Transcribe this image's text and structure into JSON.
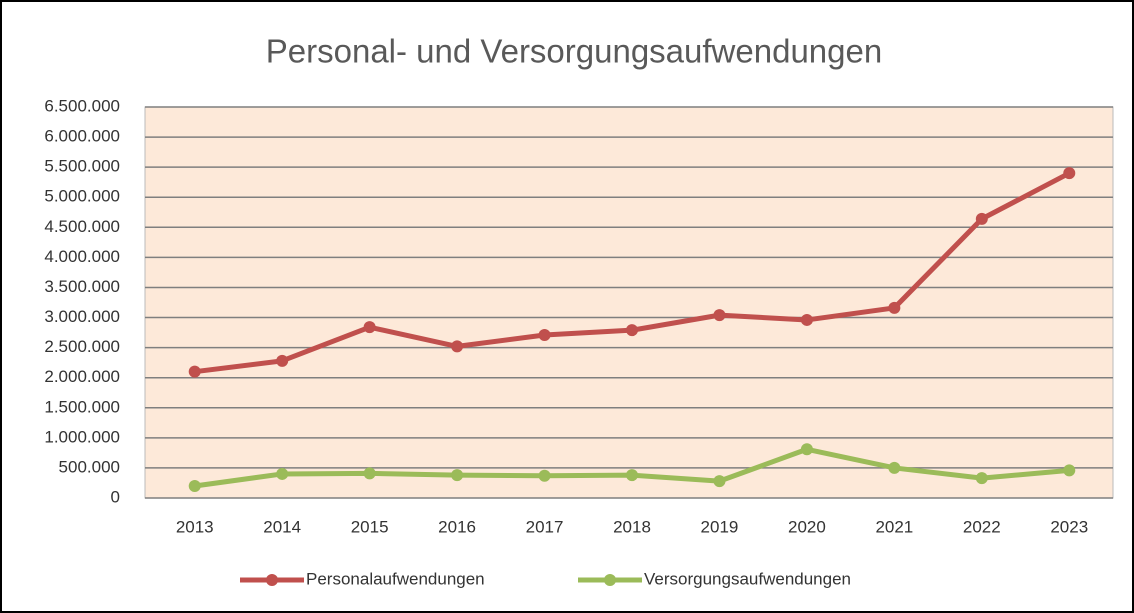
{
  "chart_data": {
    "type": "line",
    "title": "Personal- und Versorgungsaufwendungen",
    "categories": [
      "2013",
      "2014",
      "2015",
      "2016",
      "2017",
      "2018",
      "2019",
      "2020",
      "2021",
      "2022",
      "2023"
    ],
    "series": [
      {
        "name": "Personalaufwendungen",
        "color": "#c0504d",
        "values": [
          2100000,
          2280000,
          2840000,
          2520000,
          2710000,
          2790000,
          3040000,
          2960000,
          3160000,
          4640000,
          5400000
        ]
      },
      {
        "name": "Versorgungsaufwendungen",
        "color": "#9bbb59",
        "values": [
          200000,
          400000,
          410000,
          380000,
          370000,
          380000,
          280000,
          810000,
          500000,
          330000,
          460000
        ]
      }
    ],
    "ylim": [
      0,
      6500000
    ],
    "yticks": [
      0,
      {
        "value": 500000,
        "label": "500.000"
      },
      {
        "value": 1000000,
        "label": "1.000.000"
      },
      {
        "value": 1500000,
        "label": "1.500.000"
      },
      {
        "value": 2000000,
        "label": "2.000.000"
      },
      {
        "value": 2500000,
        "label": "2.500.000"
      },
      {
        "value": 3000000,
        "label": "3.000.000"
      },
      {
        "value": 3500000,
        "label": "3.500.000"
      },
      {
        "value": 4000000,
        "label": "4.000.000"
      },
      {
        "value": 4500000,
        "label": "4.500.000"
      },
      {
        "value": 5000000,
        "label": "5.000.000"
      },
      {
        "value": 5500000,
        "label": "5.500.000"
      },
      {
        "value": 6000000,
        "label": "6.000.000"
      },
      {
        "value": 6500000,
        "label": "6.500.000"
      }
    ],
    "grid": true,
    "legend": "bottom",
    "plot_background": "#fde9d9"
  }
}
